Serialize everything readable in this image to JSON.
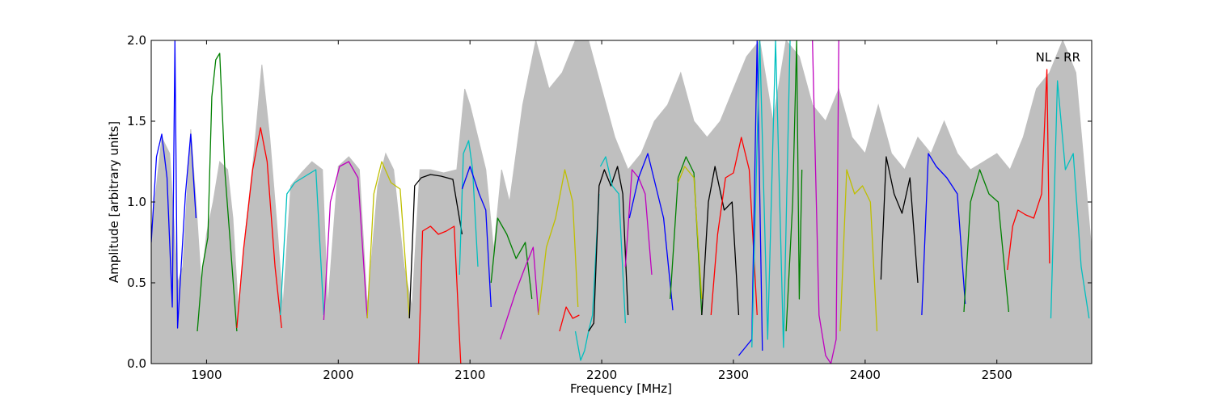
{
  "chart_data": {
    "type": "line",
    "title": "",
    "xlabel": "Frequency [MHz]",
    "ylabel": "Amplitude [arbitrary units]",
    "xlim": [
      1858,
      2572
    ],
    "ylim": [
      0.0,
      2.0
    ],
    "xticks": [
      1900,
      2000,
      2100,
      2200,
      2300,
      2400,
      2500
    ],
    "yticks": [
      0.0,
      0.5,
      1.0,
      1.5,
      2.0
    ],
    "xtick_labels": [
      "1900",
      "2000",
      "2100",
      "2200",
      "2300",
      "2400",
      "2500"
    ],
    "ytick_labels": [
      "0.0",
      "0.5",
      "1.0",
      "1.5",
      "2.0"
    ],
    "grid": false,
    "annotation": "NL - RR",
    "reference_color": "#bfbfbf",
    "color_cycle": [
      "#0000ff",
      "#008000",
      "#ff0000",
      "#00bfbf",
      "#bf00bf",
      "#bfbf00",
      "#000000"
    ],
    "bands": [
      {
        "color": "#0000ff",
        "x": [
          1858,
          1862,
          1866,
          1870,
          1874,
          1876,
          1878,
          1880,
          1884,
          1888,
          1892
        ],
        "y": [
          0.75,
          1.28,
          1.42,
          1.15,
          0.35,
          2.0,
          0.22,
          0.5,
          1.05,
          1.42,
          0.9
        ]
      },
      {
        "color": "#008000",
        "x": [
          1893,
          1897,
          1901,
          1904,
          1907,
          1910,
          1914,
          1918,
          1923
        ],
        "y": [
          0.2,
          0.6,
          0.78,
          1.65,
          1.88,
          1.92,
          1.18,
          0.75,
          0.2
        ]
      },
      {
        "color": "#ff0000",
        "x": [
          1923,
          1928,
          1935,
          1941,
          1946,
          1952,
          1957
        ],
        "y": [
          0.22,
          0.7,
          1.2,
          1.46,
          1.25,
          0.6,
          0.22
        ]
      },
      {
        "color": "#00bfbf",
        "x": [
          1956,
          1961,
          1967,
          1975,
          1983,
          1989
        ],
        "y": [
          0.3,
          1.05,
          1.12,
          1.16,
          1.2,
          0.3
        ]
      },
      {
        "color": "#bf00bf",
        "x": [
          1989,
          1994,
          2001,
          2008,
          2015,
          2022
        ],
        "y": [
          0.27,
          1.0,
          1.22,
          1.25,
          1.15,
          0.28
        ]
      },
      {
        "color": "#bfbf00",
        "x": [
          2022,
          2027,
          2033,
          2040,
          2047,
          2054
        ],
        "y": [
          0.28,
          1.05,
          1.25,
          1.12,
          1.08,
          0.28
        ]
      },
      {
        "color": "#000000",
        "x": [
          2054,
          2058,
          2063,
          2070,
          2078,
          2087,
          2094
        ],
        "y": [
          0.28,
          1.1,
          1.15,
          1.17,
          1.16,
          1.14,
          0.8
        ]
      },
      {
        "color": "#ff0000",
        "x": [
          2061,
          2064,
          2070,
          2076,
          2082,
          2088,
          2093
        ],
        "y": [
          0.0,
          0.82,
          0.85,
          0.8,
          0.82,
          0.85,
          0.0
        ]
      },
      {
        "color": "#00bfbf",
        "x": [
          2092,
          2095,
          2099,
          2102,
          2106
        ],
        "y": [
          0.55,
          1.3,
          1.38,
          1.2,
          0.6
        ]
      },
      {
        "color": "#0000ff",
        "x": [
          2094,
          2100,
          2107,
          2112,
          2116
        ],
        "y": [
          1.08,
          1.22,
          1.05,
          0.95,
          0.35
        ]
      },
      {
        "color": "#008000",
        "x": [
          2116,
          2121,
          2128,
          2135,
          2142,
          2147
        ],
        "y": [
          0.5,
          0.9,
          0.8,
          0.65,
          0.75,
          0.4
        ]
      },
      {
        "color": "#bf00bf",
        "x": [
          2123,
          2127,
          2135,
          2142,
          2148,
          2152
        ],
        "y": [
          0.15,
          0.25,
          0.45,
          0.6,
          0.72,
          0.3
        ]
      },
      {
        "color": "#bfbf00",
        "x": [
          2152,
          2158,
          2165,
          2172,
          2178,
          2182
        ],
        "y": [
          0.3,
          0.72,
          0.9,
          1.2,
          1.0,
          0.35
        ]
      },
      {
        "color": "#ff0000",
        "x": [
          2168,
          2173,
          2178,
          2183
        ],
        "y": [
          0.2,
          0.35,
          0.28,
          0.3
        ]
      },
      {
        "color": "#00bfbf",
        "x": [
          2180,
          2184,
          2187,
          2190,
          2193,
          2198
        ],
        "y": [
          0.2,
          0.02,
          0.08,
          0.2,
          0.3,
          1.05
        ]
      },
      {
        "color": "#000000",
        "x": [
          2190,
          2194,
          2198,
          2202,
          2207,
          2212,
          2216,
          2220
        ],
        "y": [
          0.2,
          0.25,
          1.1,
          1.2,
          1.1,
          1.22,
          1.05,
          0.3
        ]
      },
      {
        "color": "#00bfbf",
        "x": [
          2199,
          2203,
          2208,
          2213,
          2218
        ],
        "y": [
          1.22,
          1.28,
          1.1,
          1.05,
          0.25
        ]
      },
      {
        "color": "#bf00bf",
        "x": [
          2218,
          2223,
          2228,
          2233,
          2238
        ],
        "y": [
          0.6,
          1.2,
          1.15,
          1.05,
          0.55
        ]
      },
      {
        "color": "#0000ff",
        "x": [
          2221,
          2228,
          2235,
          2241,
          2247,
          2254
        ],
        "y": [
          0.9,
          1.15,
          1.3,
          1.1,
          0.9,
          0.33
        ]
      },
      {
        "color": "#008000",
        "x": [
          2252,
          2258,
          2264,
          2270,
          2276
        ],
        "y": [
          0.4,
          1.15,
          1.28,
          1.18,
          0.3
        ]
      },
      {
        "color": "#bfbf00",
        "x": [
          2258,
          2263,
          2270,
          2276
        ],
        "y": [
          1.12,
          1.22,
          1.15,
          0.4
        ]
      },
      {
        "color": "#000000",
        "x": [
          2276,
          2281,
          2286,
          2293,
          2299,
          2304
        ],
        "y": [
          0.3,
          1.0,
          1.22,
          0.95,
          1.0,
          0.3
        ]
      },
      {
        "color": "#ff0000",
        "x": [
          2283,
          2288,
          2294,
          2300,
          2306,
          2312,
          2318
        ],
        "y": [
          0.3,
          0.8,
          1.15,
          1.18,
          1.4,
          1.2,
          0.3
        ]
      },
      {
        "color": "#0000ff",
        "x": [
          2304,
          2309,
          2314,
          2318,
          2322
        ],
        "y": [
          0.05,
          0.1,
          0.15,
          2.0,
          0.08
        ]
      },
      {
        "color": "#00bfbf",
        "x": [
          2314,
          2320,
          2326,
          2332,
          2338,
          2343
        ],
        "y": [
          0.1,
          2.0,
          0.15,
          2.0,
          0.1,
          2.0
        ]
      },
      {
        "color": "#008000",
        "x": [
          2340,
          2345,
          2348,
          2350,
          2352
        ],
        "y": [
          0.2,
          1.0,
          2.0,
          0.4,
          1.2
        ]
      },
      {
        "color": "#bf00bf",
        "x": [
          2360,
          2365,
          2370,
          2374,
          2378,
          2380
        ],
        "y": [
          2.0,
          0.3,
          0.05,
          0.0,
          0.15,
          2.0
        ]
      },
      {
        "color": "#bfbf00",
        "x": [
          2381,
          2386,
          2392,
          2398,
          2404,
          2409
        ],
        "y": [
          0.2,
          1.2,
          1.05,
          1.1,
          1.0,
          0.2
        ]
      },
      {
        "color": "#000000",
        "x": [
          2412,
          2416,
          2422,
          2428,
          2434,
          2440
        ],
        "y": [
          0.52,
          1.28,
          1.05,
          0.93,
          1.15,
          0.5
        ]
      },
      {
        "color": "#0000ff",
        "x": [
          2443,
          2448,
          2454,
          2462,
          2470,
          2476
        ],
        "y": [
          0.3,
          1.3,
          1.22,
          1.15,
          1.05,
          0.37
        ]
      },
      {
        "color": "#008000",
        "x": [
          2475,
          2480,
          2487,
          2494,
          2501,
          2509
        ],
        "y": [
          0.32,
          1.0,
          1.2,
          1.05,
          1.0,
          0.32
        ]
      },
      {
        "color": "#ff0000",
        "x": [
          2508,
          2512,
          2516,
          2522,
          2528,
          2534,
          2538,
          2540
        ],
        "y": [
          0.58,
          0.85,
          0.95,
          0.92,
          0.9,
          1.05,
          1.82,
          0.62
        ]
      },
      {
        "color": "#00bfbf",
        "x": [
          2541,
          2546,
          2552,
          2558,
          2564,
          2570
        ],
        "y": [
          0.28,
          1.75,
          1.2,
          1.3,
          0.6,
          0.28
        ]
      }
    ],
    "reference": {
      "x": [
        1858,
        1866,
        1872,
        1878,
        1882,
        1888,
        1892,
        1896,
        1900,
        1905,
        1910,
        1916,
        1920,
        1924,
        1930,
        1936,
        1942,
        1948,
        1954,
        1958,
        1964,
        1972,
        1980,
        1988,
        1992,
        2000,
        2008,
        2016,
        2022,
        2030,
        2036,
        2042,
        2050,
        2056,
        2062,
        2070,
        2080,
        2090,
        2096,
        2100,
        2106,
        2112,
        2118,
        2124,
        2130,
        2140,
        2150,
        2160,
        2170,
        2180,
        2190,
        2200,
        2210,
        2220,
        2230,
        2240,
        2250,
        2260,
        2270,
        2280,
        2290,
        2300,
        2310,
        2320,
        2330,
        2340,
        2350,
        2360,
        2370,
        2380,
        2390,
        2400,
        2410,
        2420,
        2430,
        2440,
        2450,
        2460,
        2470,
        2480,
        2490,
        2500,
        2510,
        2520,
        2530,
        2540,
        2550,
        2560,
        2572
      ],
      "y": [
        0.8,
        1.4,
        1.3,
        0.5,
        0.6,
        1.45,
        1.0,
        0.5,
        0.8,
        1.0,
        1.25,
        1.2,
        0.9,
        0.35,
        0.85,
        1.3,
        1.85,
        1.4,
        0.8,
        0.35,
        1.1,
        1.18,
        1.25,
        1.2,
        0.35,
        1.22,
        1.28,
        1.2,
        0.35,
        1.1,
        1.3,
        1.2,
        0.6,
        0.35,
        1.2,
        1.2,
        1.18,
        1.2,
        1.7,
        1.6,
        1.4,
        1.2,
        0.7,
        1.2,
        1.0,
        1.6,
        2.0,
        1.7,
        1.8,
        2.0,
        2.0,
        1.7,
        1.4,
        1.2,
        1.3,
        1.5,
        1.6,
        1.8,
        1.5,
        1.4,
        1.5,
        1.7,
        1.9,
        2.0,
        1.5,
        2.0,
        1.9,
        1.6,
        1.5,
        1.7,
        1.4,
        1.3,
        1.6,
        1.3,
        1.2,
        1.4,
        1.3,
        1.5,
        1.3,
        1.2,
        1.25,
        1.3,
        1.2,
        1.4,
        1.7,
        1.8,
        2.0,
        1.8,
        0.7
      ]
    }
  }
}
